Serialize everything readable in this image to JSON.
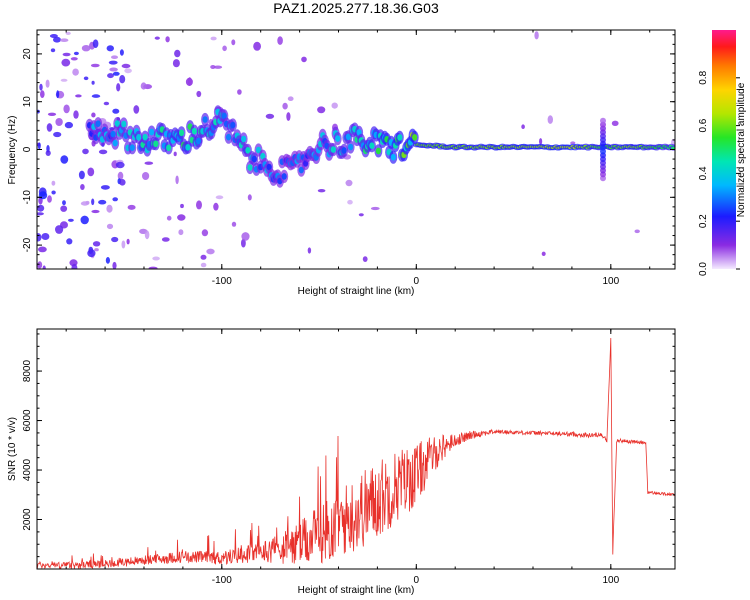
{
  "title": "PAZ1.2025.277.18.36.G03",
  "colors": {
    "snr_line": "#e8312b",
    "axis": "#000000"
  },
  "chart_data": [
    {
      "type": "heatmap",
      "title": "PAZ1.2025.277.18.36.G03",
      "xlabel": "Height of straight line (km)",
      "ylabel": "Frequency (Hz)",
      "xlim": [
        -195,
        133
      ],
      "ylim": [
        -25,
        25
      ],
      "xticks": [
        -100,
        0,
        100
      ],
      "xtick_labels": [
        "-100",
        "0",
        "100"
      ],
      "yticks": [
        -20,
        -10,
        0,
        10,
        20
      ],
      "ytick_labels": [
        "-20",
        "-10",
        "0",
        "10",
        "20"
      ],
      "colorbar": {
        "label": "Normalized spectral amplitude",
        "range": [
          0,
          1
        ],
        "ticks": [
          0.0,
          0.2,
          0.4,
          0.6,
          0.8
        ],
        "tick_labels": [
          "0.0",
          "0.2",
          "0.4",
          "0.6",
          "0.8"
        ]
      },
      "ridge": [
        {
          "x": -160,
          "f": 4,
          "a": 0.35
        },
        {
          "x": -140,
          "f": 2,
          "a": 0.45
        },
        {
          "x": -120,
          "f": 2,
          "a": 0.5
        },
        {
          "x": -100,
          "f": 6,
          "a": 0.4
        },
        {
          "x": -85,
          "f": -2,
          "a": 0.4
        },
        {
          "x": -65,
          "f": -5,
          "a": 0.3
        },
        {
          "x": -50,
          "f": 1,
          "a": 0.35
        },
        {
          "x": -30,
          "f": 2,
          "a": 0.45
        },
        {
          "x": -15,
          "f": 0.5,
          "a": 0.55
        },
        {
          "x": 0,
          "f": 1,
          "a": 0.6
        },
        {
          "x": 20,
          "f": 0.5,
          "a": 0.6
        },
        {
          "x": 50,
          "f": 0.5,
          "a": 0.62
        },
        {
          "x": 80,
          "f": 0.5,
          "a": 0.65
        },
        {
          "x": 96,
          "f": 0.5,
          "a": 0.55
        },
        {
          "x": 110,
          "f": 0.5,
          "a": 0.62
        },
        {
          "x": 133,
          "f": 0.5,
          "a": 0.5
        }
      ]
    },
    {
      "type": "line",
      "title": "",
      "xlabel": "Height of straight line (km)",
      "ylabel": "SNR (10 * v/v)",
      "xlim": [
        -195,
        133
      ],
      "ylim": [
        0,
        9700
      ],
      "xticks": [
        -100,
        0,
        100
      ],
      "xtick_labels": [
        "-100",
        "0",
        "100"
      ],
      "yticks": [
        2000,
        4000,
        6000,
        8000
      ],
      "ytick_labels": [
        "2000",
        "4000",
        "6000",
        "8000"
      ],
      "series": [
        {
          "name": "SNR",
          "x": [
            -195,
            -180,
            -160,
            -140,
            -120,
            -100,
            -80,
            -60,
            -45,
            -30,
            -20,
            -10,
            0,
            5,
            10,
            15,
            20,
            30,
            40,
            60,
            80,
            90,
            95,
            98,
            100,
            101,
            103,
            110,
            118,
            119,
            125,
            133
          ],
          "y": [
            150,
            150,
            200,
            350,
            500,
            450,
            700,
            1000,
            1600,
            2300,
            2800,
            3400,
            3800,
            4300,
            4700,
            5000,
            5200,
            5450,
            5550,
            5500,
            5450,
            5400,
            5450,
            5200,
            9300,
            600,
            5200,
            5150,
            5100,
            3100,
            3050,
            3000
          ]
        }
      ],
      "envelope": [
        {
          "x": -195,
          "a": 120
        },
        {
          "x": -150,
          "a": 180
        },
        {
          "x": -110,
          "a": 250
        },
        {
          "x": -80,
          "a": 400
        },
        {
          "x": -60,
          "a": 900
        },
        {
          "x": -45,
          "a": 1300
        },
        {
          "x": -30,
          "a": 1600
        },
        {
          "x": -15,
          "a": 1600
        },
        {
          "x": 0,
          "a": 1300
        },
        {
          "x": 10,
          "a": 700
        },
        {
          "x": 20,
          "a": 250
        },
        {
          "x": 40,
          "a": 80
        },
        {
          "x": 90,
          "a": 90
        },
        {
          "x": 133,
          "a": 50
        }
      ]
    }
  ]
}
